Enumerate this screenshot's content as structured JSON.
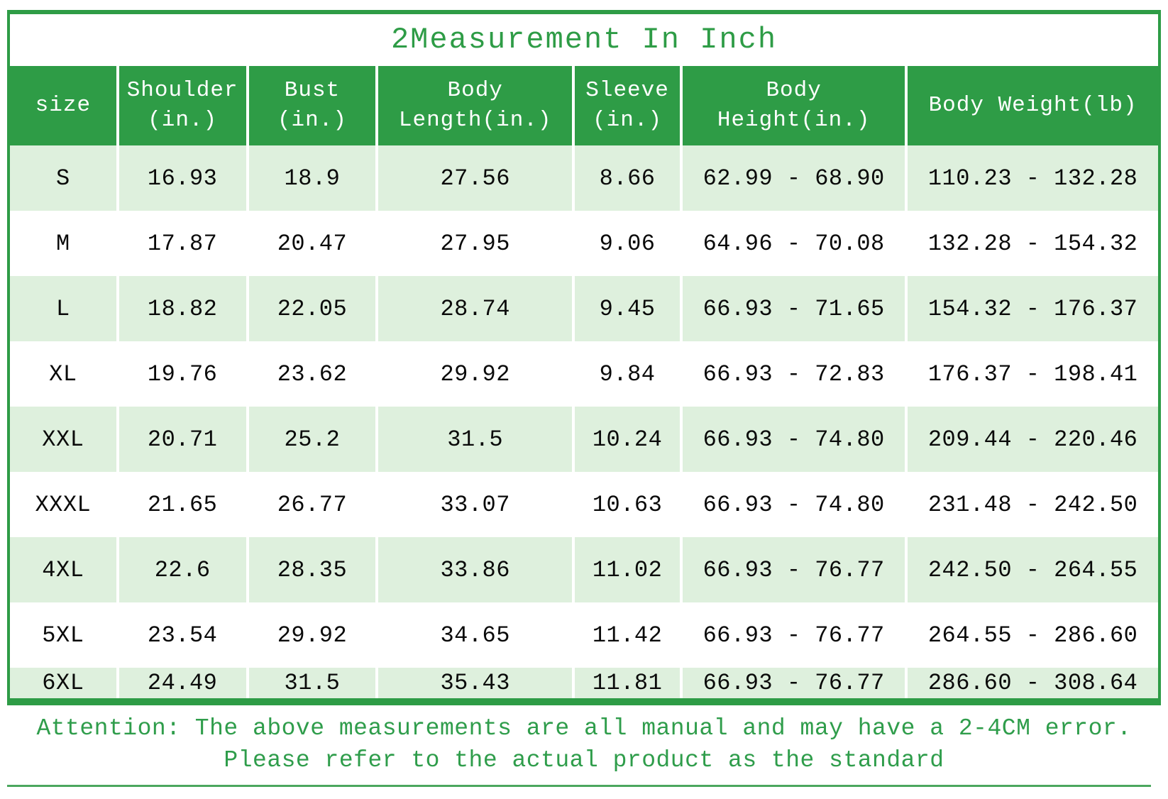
{
  "colors": {
    "header_green": "#2E9C46",
    "row_light_green": "#DEF0DD",
    "note_green": "#2F9D4B",
    "cell_text": "#0A0A0A"
  },
  "header_lines": [
    [
      "size"
    ],
    [
      "Shoulder",
      "(in.)"
    ],
    [
      "Bust",
      "(in.)"
    ],
    [
      "Body",
      "Length(in.)"
    ],
    [
      "Sleeve",
      "(in.)"
    ],
    [
      "Body",
      "Height(in.)"
    ],
    [
      "Body Weight(lb)"
    ]
  ],
  "chart_data": {
    "type": "table",
    "title": "2Measurement In Inch",
    "columns": [
      "size",
      "Shoulder (in.)",
      "Bust (in.)",
      "Body Length(in.)",
      "Sleeve (in.)",
      "Body Height(in.)",
      "Body Weight(lb)"
    ],
    "rows": [
      [
        "S",
        "16.93",
        "18.9",
        "27.56",
        "8.66",
        "62.99 - 68.90",
        "110.23 - 132.28"
      ],
      [
        "M",
        "17.87",
        "20.47",
        "27.95",
        "9.06",
        "64.96 - 70.08",
        "132.28 - 154.32"
      ],
      [
        "L",
        "18.82",
        "22.05",
        "28.74",
        "9.45",
        "66.93 - 71.65",
        "154.32 - 176.37"
      ],
      [
        "XL",
        "19.76",
        "23.62",
        "29.92",
        "9.84",
        "66.93 - 72.83",
        "176.37 - 198.41"
      ],
      [
        "XXL",
        "20.71",
        "25.2",
        "31.5",
        "10.24",
        "66.93 - 74.80",
        "209.44 - 220.46"
      ],
      [
        "XXXL",
        "21.65",
        "26.77",
        "33.07",
        "10.63",
        "66.93 - 74.80",
        "231.48 - 242.50"
      ],
      [
        "4XL",
        "22.6",
        "28.35",
        "33.86",
        "11.02",
        "66.93 - 76.77",
        "242.50 - 264.55"
      ],
      [
        "5XL",
        "23.54",
        "29.92",
        "34.65",
        "11.42",
        "66.93 - 76.77",
        "264.55 - 286.60"
      ],
      [
        "6XL",
        "24.49",
        "31.5",
        "35.43",
        "11.81",
        "66.93 - 76.77",
        "286.60 - 308.64"
      ]
    ],
    "annotations": [
      "Attention: The above measurements are all manual and may have a 2-4CM error.",
      "Please refer to the actual product as the standard"
    ],
    "units": "inches (body weight in lb)",
    "legend_position": "none",
    "grid": "white separators on green header and alternating light-green rows"
  }
}
